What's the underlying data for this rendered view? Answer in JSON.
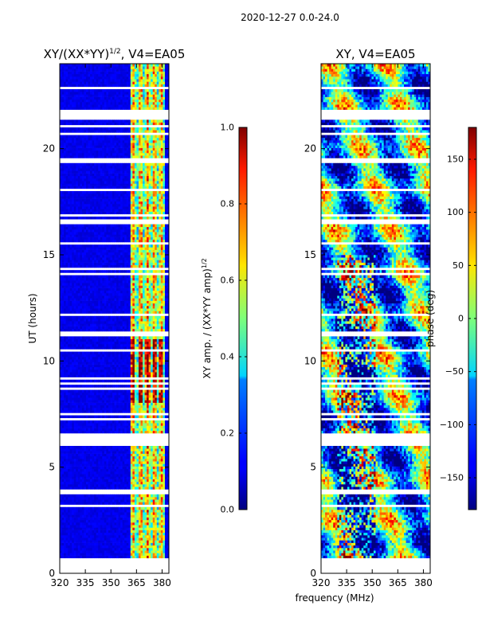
{
  "figure": {
    "suptitle": "2020-12-27 0.0-24.0",
    "xlabel": "frequency (MHz)"
  },
  "chart_data": [
    {
      "type": "heatmap",
      "title_main": "XY/(XX*YY)",
      "title_sup": "1/2",
      "title_rest": ", V4=EA05",
      "ylabel": "UT (hours)",
      "xlim": [
        320,
        384
      ],
      "ylim": [
        0,
        24
      ],
      "xticks": [
        320,
        335,
        350,
        365,
        380
      ],
      "yticks": [
        0,
        5,
        10,
        15,
        20
      ],
      "colorbar": {
        "label_main": "XY amp. / (XX*YY amp)",
        "label_sup": "1/2",
        "range": [
          0.0,
          1.0
        ],
        "ticks": [
          0.0,
          0.2,
          0.4,
          0.6,
          0.8,
          1.0
        ],
        "tick_labels": [
          "0.0",
          "0.2",
          "0.4",
          "0.6",
          "0.8",
          "1.0"
        ]
      },
      "description": "Normalized XY amplitude versus frequency and UT; near 0 (dark blue) below ~361 MHz, high values (0.3-1.0) in stripes between ~361 and 381 MHz; white rows are flagged gaps."
    },
    {
      "type": "heatmap",
      "title_main": "XY, V4=EA05",
      "ylabel": "",
      "xlim": [
        320,
        384
      ],
      "ylim": [
        0,
        24
      ],
      "xticks": [
        320,
        335,
        350,
        365,
        380
      ],
      "yticks": [
        0,
        5,
        10,
        15,
        20
      ],
      "colorbar": {
        "label_main": "phase (deg)",
        "range": [
          -180,
          180
        ],
        "ticks": [
          150,
          100,
          50,
          0,
          -50,
          -100,
          -150
        ],
        "tick_labels": [
          "150",
          "100",
          "50",
          "0",
          "−50",
          "−100",
          "−150"
        ]
      },
      "description": "XY phase versus frequency and UT spanning the full −180 to 180 deg range with noisy banded structure; white rows are flagged gaps."
    }
  ]
}
